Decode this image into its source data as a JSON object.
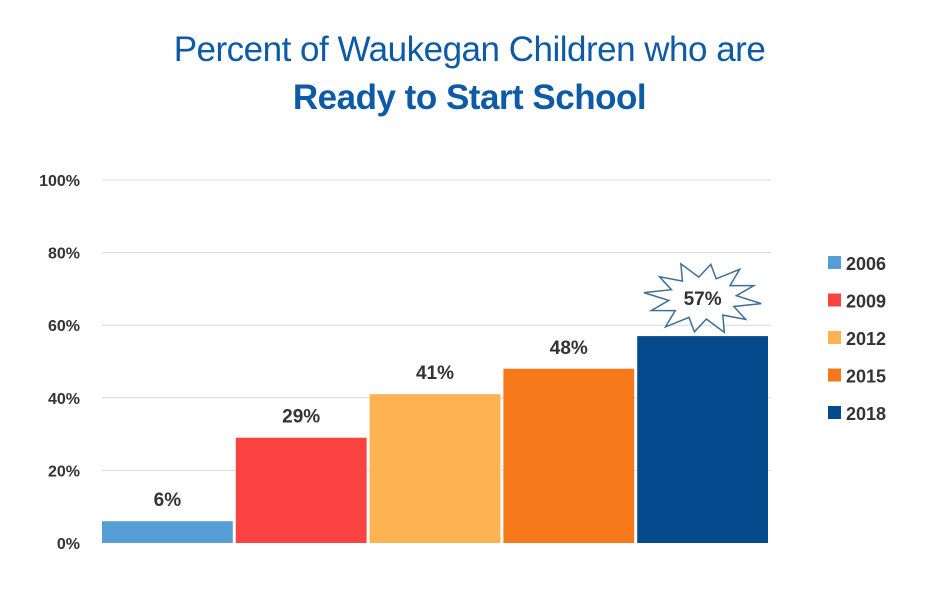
{
  "title_line1": "Percent of Waukegan Children who are",
  "title_line2": "Ready to Start School",
  "chart_data": {
    "type": "bar",
    "title": "Percent of Waukegan Children who are Ready to Start School",
    "categories": [
      "2006",
      "2009",
      "2012",
      "2015",
      "2018"
    ],
    "values": [
      6,
      29,
      41,
      48,
      57
    ],
    "data_labels": [
      "6%",
      "29%",
      "41%",
      "48%",
      "57%"
    ],
    "colors": [
      "#559fd6",
      "#fa4340",
      "#fdb352",
      "#f5791a",
      "#054a8c"
    ],
    "ylim": [
      0,
      100
    ],
    "yticks": [
      0,
      20,
      40,
      60,
      80,
      100
    ],
    "ytick_labels": [
      "0%",
      "20%",
      "40%",
      "60%",
      "80%",
      "100%"
    ],
    "grid": true,
    "legend": "right",
    "highlight": "2018 label in starburst callout"
  }
}
